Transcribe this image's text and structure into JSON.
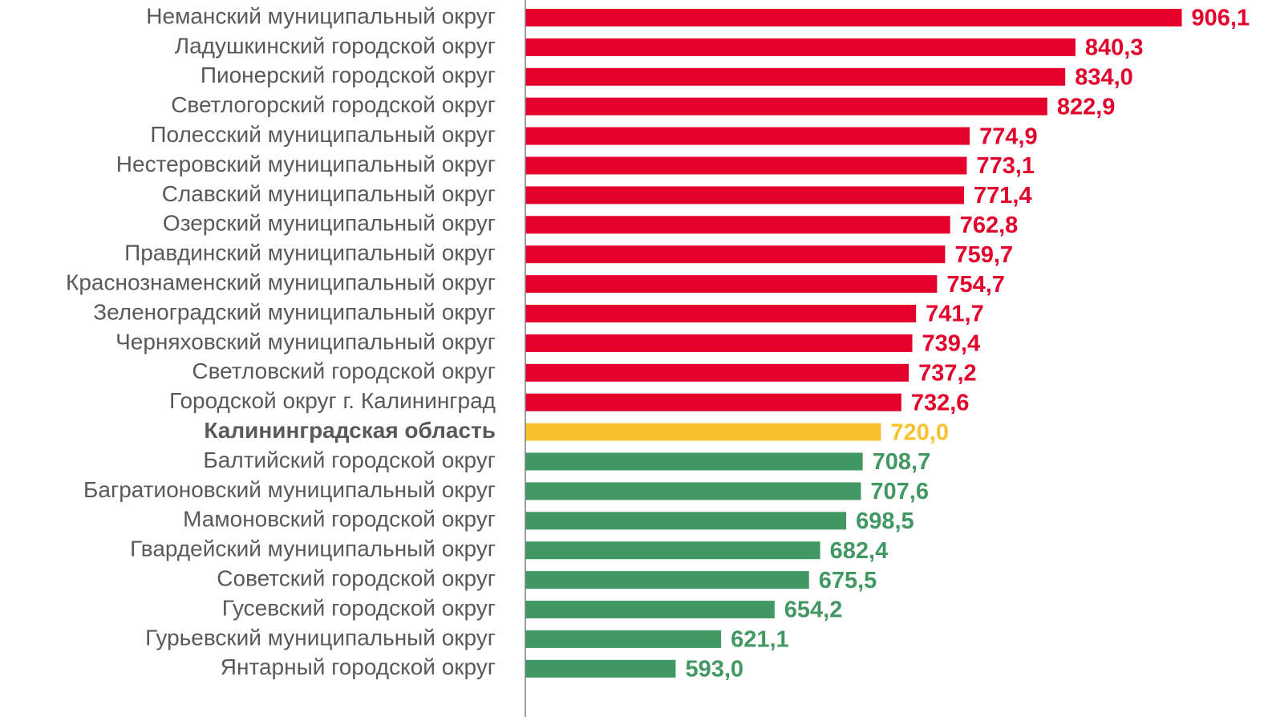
{
  "chart_data": {
    "type": "barh",
    "categories": [
      "Неманский муниципальный округ",
      "Ладушкинский городской округ",
      "Пионерский городской округ",
      "Светлогорский городской округ",
      "Полесский муниципальный округ",
      "Нестеровский муниципальный округ",
      "Славский муниципальный округ",
      "Озерский муниципальный округ",
      "Правдинский муниципальный округ",
      "Краснознаменский муниципальный округ",
      "Зеленоградский муниципальный округ",
      "Черняховский муниципальный округ",
      "Светловский городской округ",
      "Городской округ г. Калининград",
      "Калининградская область",
      "Балтийский городской округ",
      "Багратионовский муниципальный округ",
      "Мамоновский городской округ",
      "Гвардейский муниципальный округ",
      "Советский городской округ",
      "Гусевский городской округ",
      "Гурьевский муниципальный округ",
      "Янтарный городской округ"
    ],
    "values": [
      906.1,
      840.3,
      834.0,
      822.9,
      774.9,
      773.1,
      771.4,
      762.8,
      759.7,
      754.7,
      741.7,
      739.4,
      737.2,
      732.6,
      720.0,
      708.7,
      707.6,
      698.5,
      682.4,
      675.5,
      654.2,
      621.1,
      593.0
    ],
    "value_labels": [
      "906,1",
      "840,3",
      "834,0",
      "822,9",
      "774,9",
      "773,1",
      "771,4",
      "762,8",
      "759,7",
      "754,7",
      "741,7",
      "739,4",
      "737,2",
      "732,6",
      "720,0",
      "708,7",
      "707,6",
      "698,5",
      "682,4",
      "675,5",
      "654,2",
      "621,1",
      "593,0"
    ],
    "colors": [
      "#e3002b",
      "#e3002b",
      "#e3002b",
      "#e3002b",
      "#e3002b",
      "#e3002b",
      "#e3002b",
      "#e3002b",
      "#e3002b",
      "#e3002b",
      "#e3002b",
      "#e3002b",
      "#e3002b",
      "#e3002b",
      "#fbc02d",
      "#419862",
      "#419862",
      "#419862",
      "#419862",
      "#419862",
      "#419862",
      "#419862",
      "#419862"
    ],
    "emphasis": "Калининградская область",
    "xlim": [
      500,
      950
    ]
  }
}
